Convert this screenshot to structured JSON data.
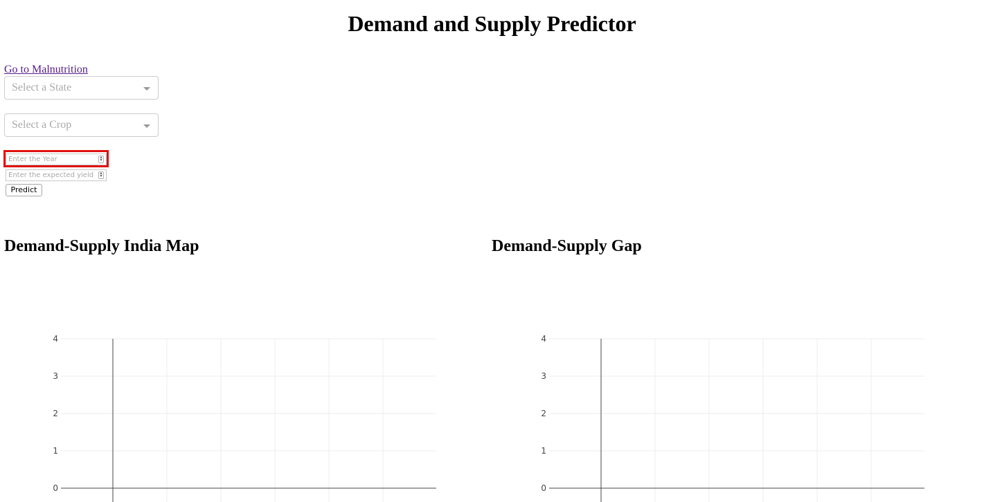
{
  "header": {
    "title": "Demand and Supply Predictor"
  },
  "nav": {
    "link_label": "Go to Malnutrition"
  },
  "form": {
    "state_placeholder": "Select a State",
    "crop_placeholder": "Select a Crop",
    "year_placeholder": "Enter the Year",
    "yield_placeholder": "Enter the expected yield",
    "predict_label": "Predict"
  },
  "sections": {
    "map_title": "Demand-Supply India Map",
    "gap_title": "Demand-Supply Gap"
  },
  "chart_data": [
    {
      "type": "scatter",
      "title": "",
      "xlabel": "",
      "ylabel": "",
      "series": [],
      "ylim": [
        0,
        4
      ],
      "yticks": [
        "0",
        "1",
        "2",
        "3",
        "4"
      ],
      "grid": true
    },
    {
      "type": "scatter",
      "title": "",
      "xlabel": "",
      "ylabel": "",
      "series": [],
      "ylim": [
        0,
        4
      ],
      "yticks": [
        "0",
        "1",
        "2",
        "3",
        "4"
      ],
      "grid": true
    }
  ]
}
